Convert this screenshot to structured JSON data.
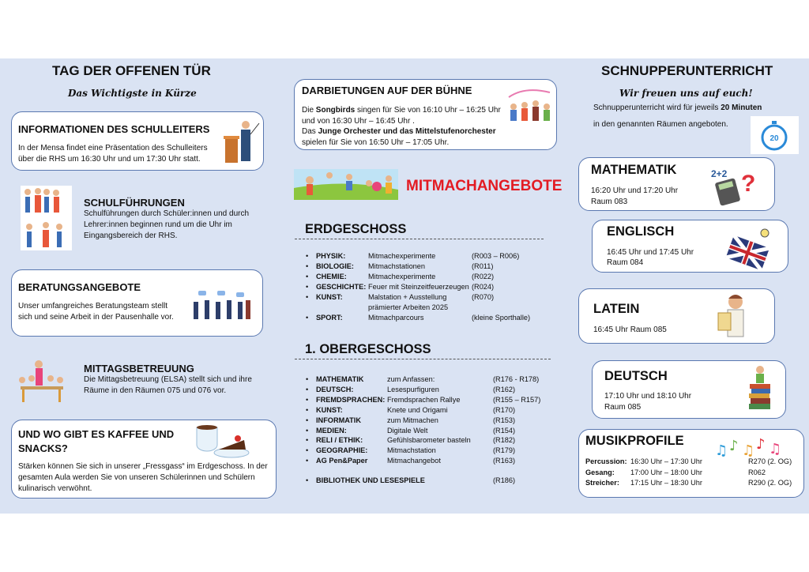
{
  "left": {
    "title": "TAG DER OFFENEN TÜR",
    "subtitle": "Das Wichtigste in Kürze",
    "schulleiter": {
      "title": "INFORMATIONEN DES SCHULLEITERS",
      "lines": [
        "In der Mensa findet eine Präsentation des Schulleiters",
        "über die RHS um 16:30 Uhr und um 17:30 Uhr statt."
      ]
    },
    "fuehrungen": {
      "title": "SCHULFÜHRUNGEN",
      "lines": [
        "Schulführungen durch Schüler:innen und durch",
        "Lehrer:innen beginnen rund um die Uhr im",
        "Eingangsbereich der RHS."
      ]
    },
    "beratung": {
      "title": "BERATUNGSANGEBOTE",
      "lines": [
        "Unser umfangreiches Beratungsteam stellt",
        "sich und seine Arbeit in der Pausenhalle vor."
      ]
    },
    "mittag": {
      "title": "MITTAGSBETREUUNG",
      "lines": [
        "Die Mittagsbetreuung (ELSA) stellt sich und ihre",
        "Räume in den Räumen 075 und 076 vor."
      ]
    },
    "kaffee": {
      "title_lines": [
        "UND WO GIBT ES KAFFEE UND",
        "SNACKS?"
      ],
      "lines": [
        "Stärken können Sie sich in unserer „Fressgass“ im Erdgeschoss. In der",
        "gesamten Aula werden Sie von unseren Schülerinnen und Schülern",
        "kulinarisch verwöhnt."
      ]
    }
  },
  "middle": {
    "buehne": {
      "title": "DARBIETUNGEN AUF DER BÜHNE",
      "l1a": "Die ",
      "l1b": "Songbirds",
      "l1c": " singen für Sie von 16:10 Uhr – 16:25 Uhr",
      "l2": "und von 16:30 Uhr – 16:45 Uhr .",
      "l3a": "Das ",
      "l3b": "Junge Orchester und das Mittelstufenorchester",
      "l4": "spielen für Sie von 16:50 Uhr – 17:05 Uhr."
    },
    "mitmach_title": "MITMACHANGEBOTE",
    "eg": {
      "title": "ERDGESCHOSS",
      "items": [
        {
          "subject": "PHYSIK:",
          "activity": "Mitmachexperimente",
          "room": "(R003 – R006)"
        },
        {
          "subject": "BIOLOGIE:",
          "activity": "Mitmachstationen",
          "room": "(R011)"
        },
        {
          "subject": "CHEMIE:",
          "activity": "Mitmachexperimente",
          "room": "(R022)"
        },
        {
          "subject": "GESCHICHTE:",
          "activity": "Feuer mit Steinzeitfeuerzeugen",
          "room": "(R024)"
        },
        {
          "subject": "KUNST:",
          "activity": "Malstation + Ausstellung",
          "activity2": "prämierter Arbeiten 2025",
          "room": "(R070)"
        },
        {
          "subject": "SPORT:",
          "activity": "Mitmachparcours",
          "room": "(kleine Sporthalle)"
        }
      ]
    },
    "og": {
      "title": "1.   OBERGESCHOSS",
      "items": [
        {
          "subject": "MATHEMATIK",
          "activity": "zum Anfassen:",
          "room": "(R176 - R178)"
        },
        {
          "subject": "DEUTSCH:",
          "activity": "Lesespurfiguren",
          "room": "(R162)"
        },
        {
          "subject": "FREMDSPRACHEN:",
          "activity": "Fremdsprachen Rallye",
          "room": "(R155 – R157)"
        },
        {
          "subject": "KUNST:",
          "activity": "Knete und Origami",
          "room": "(R170)"
        },
        {
          "subject": "INFORMATIK",
          "activity": "zum Mitmachen",
          "room": "(R153)"
        },
        {
          "subject": "MEDIEN:",
          "activity": "Digitale Welt",
          "room": "(R154)"
        },
        {
          "subject": "RELI / ETHIK:",
          "activity": "Gefühlsbarometer basteln",
          "room": "(R182)"
        },
        {
          "subject": "GEOGRAPHIE:",
          "activity": "Mitmachstation",
          "room": "(R179)"
        },
        {
          "subject": "AG Pen&Paper",
          "activity": "Mitmachangebot",
          "room": "(R163)"
        },
        {
          "subject": "BIBLIOTHEK UND LESESPIELE",
          "activity": "",
          "room": "(R186)"
        }
      ]
    }
  },
  "right": {
    "title": "SCHNUPPERUNTERRICHT",
    "subtitle": "Wir freuen uns auf euch!",
    "intro1a": "Schnupperunterricht wird für jeweils ",
    "intro1b": "20 Minuten",
    "intro2": "in den genannten Räumen angeboten.",
    "timer_label": "20",
    "mathe": {
      "title": "MATHEMATIK",
      "times": "16:20 Uhr   und   17:20 Uhr",
      "room": "Raum 083"
    },
    "englisch": {
      "title": "ENGLISCH",
      "times": "16:45 Uhr   und   17:45 Uhr",
      "room": "Raum 084"
    },
    "latein": {
      "title": "LATEIN",
      "times": "16:45 Uhr     Raum 085"
    },
    "deutsch": {
      "title": "DEUTSCH",
      "times": "17:10 Uhr   und   18:10 Uhr",
      "room": "Raum 085"
    },
    "musik": {
      "title": "MUSIKPROFILE",
      "rows": [
        {
          "label": "Percussion:",
          "time": "16:30 Uhr – 17:30 Uhr",
          "room": "R270 (2. OG)"
        },
        {
          "label": "Gesang:",
          "time": "17:00 Uhr – 18:00 Uhr",
          "room": "R062"
        },
        {
          "label": "Streicher:",
          "time": "17:15 Uhr – 18:30 Uhr",
          "room": "R290 (2. OG)"
        }
      ]
    }
  },
  "colors": {
    "panel": "#dae3f3",
    "card_border": "#5a78b0",
    "accent_red": "#e31b23"
  },
  "icons": [
    "speaker-podium-icon",
    "tour-group-icon",
    "counseling-team-icon",
    "lunch-care-icon",
    "coffee-cake-icon",
    "stage-music-icon",
    "children-playing-icon",
    "stopwatch-icon",
    "calculator-icon",
    "uk-flag-icon",
    "roman-scholar-icon",
    "books-girl-icon",
    "music-notes-icon"
  ]
}
